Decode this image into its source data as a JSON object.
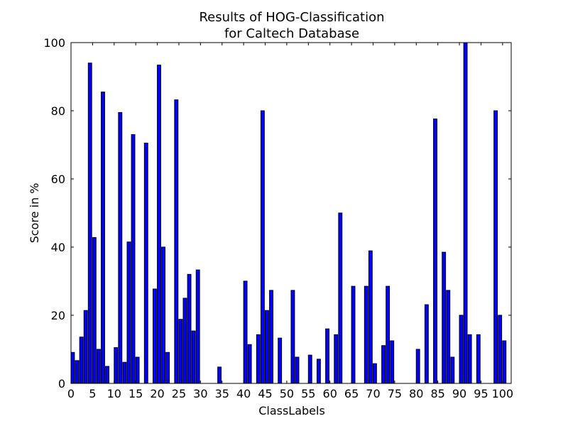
{
  "chart_data": {
    "type": "bar",
    "title_line1": "Results of HOG-Classification",
    "title_line2": "for Caltech Database",
    "xlabel": "ClassLabels",
    "ylabel": "Score in %",
    "xlim": [
      0,
      102
    ],
    "ylim": [
      0,
      100
    ],
    "x_ticks": [
      0,
      5,
      10,
      15,
      20,
      25,
      30,
      35,
      40,
      45,
      50,
      55,
      60,
      65,
      70,
      75,
      80,
      85,
      90,
      95,
      100
    ],
    "y_ticks": [
      0,
      20,
      40,
      60,
      80,
      100
    ],
    "bar_color": "#0000ff",
    "bar_edge_color": "#000000",
    "bar_width": 0.8,
    "grid": false,
    "legend": "none",
    "x": [
      0,
      1,
      2,
      3,
      4,
      5,
      6,
      7,
      8,
      9,
      10,
      11,
      12,
      13,
      14,
      15,
      16,
      17,
      18,
      19,
      20,
      21,
      22,
      23,
      24,
      25,
      26,
      27,
      28,
      29,
      30,
      31,
      32,
      33,
      34,
      35,
      36,
      37,
      38,
      39,
      40,
      41,
      42,
      43,
      44,
      45,
      46,
      47,
      48,
      49,
      50,
      51,
      52,
      53,
      54,
      55,
      56,
      57,
      58,
      59,
      60,
      61,
      62,
      63,
      64,
      65,
      66,
      67,
      68,
      69,
      70,
      71,
      72,
      73,
      74,
      75,
      76,
      77,
      78,
      79,
      80,
      81,
      82,
      83,
      84,
      85,
      86,
      87,
      88,
      89,
      90,
      91,
      92,
      93,
      94,
      95,
      96,
      97,
      98,
      99,
      100
    ],
    "values": [
      9.1,
      6.7,
      13.6,
      21.4,
      94.0,
      42.8,
      10.0,
      85.5,
      5.0,
      0,
      10.5,
      79.5,
      6.2,
      41.5,
      73.0,
      7.7,
      0,
      70.5,
      0,
      27.7,
      93.4,
      40.0,
      9.1,
      0,
      83.2,
      18.8,
      25.0,
      32.0,
      15.4,
      33.3,
      0,
      0,
      0,
      0,
      4.8,
      0,
      0,
      0,
      0,
      0,
      30.0,
      11.4,
      0,
      14.3,
      80.0,
      21.4,
      27.3,
      0,
      13.3,
      0,
      0,
      27.3,
      7.7,
      0,
      0,
      8.3,
      0,
      7.1,
      0,
      16.0,
      0,
      14.3,
      50.0,
      0,
      0,
      28.5,
      0,
      0,
      28.5,
      38.9,
      5.8,
      0,
      11.1,
      28.5,
      12.5,
      0,
      0,
      0,
      0,
      0,
      10.0,
      0,
      23.1,
      0,
      77.6,
      0,
      38.5,
      27.3,
      7.7,
      0,
      20.0,
      100.0,
      14.3,
      0,
      14.3,
      0,
      0,
      0,
      80.0,
      20.0,
      12.5
    ]
  }
}
